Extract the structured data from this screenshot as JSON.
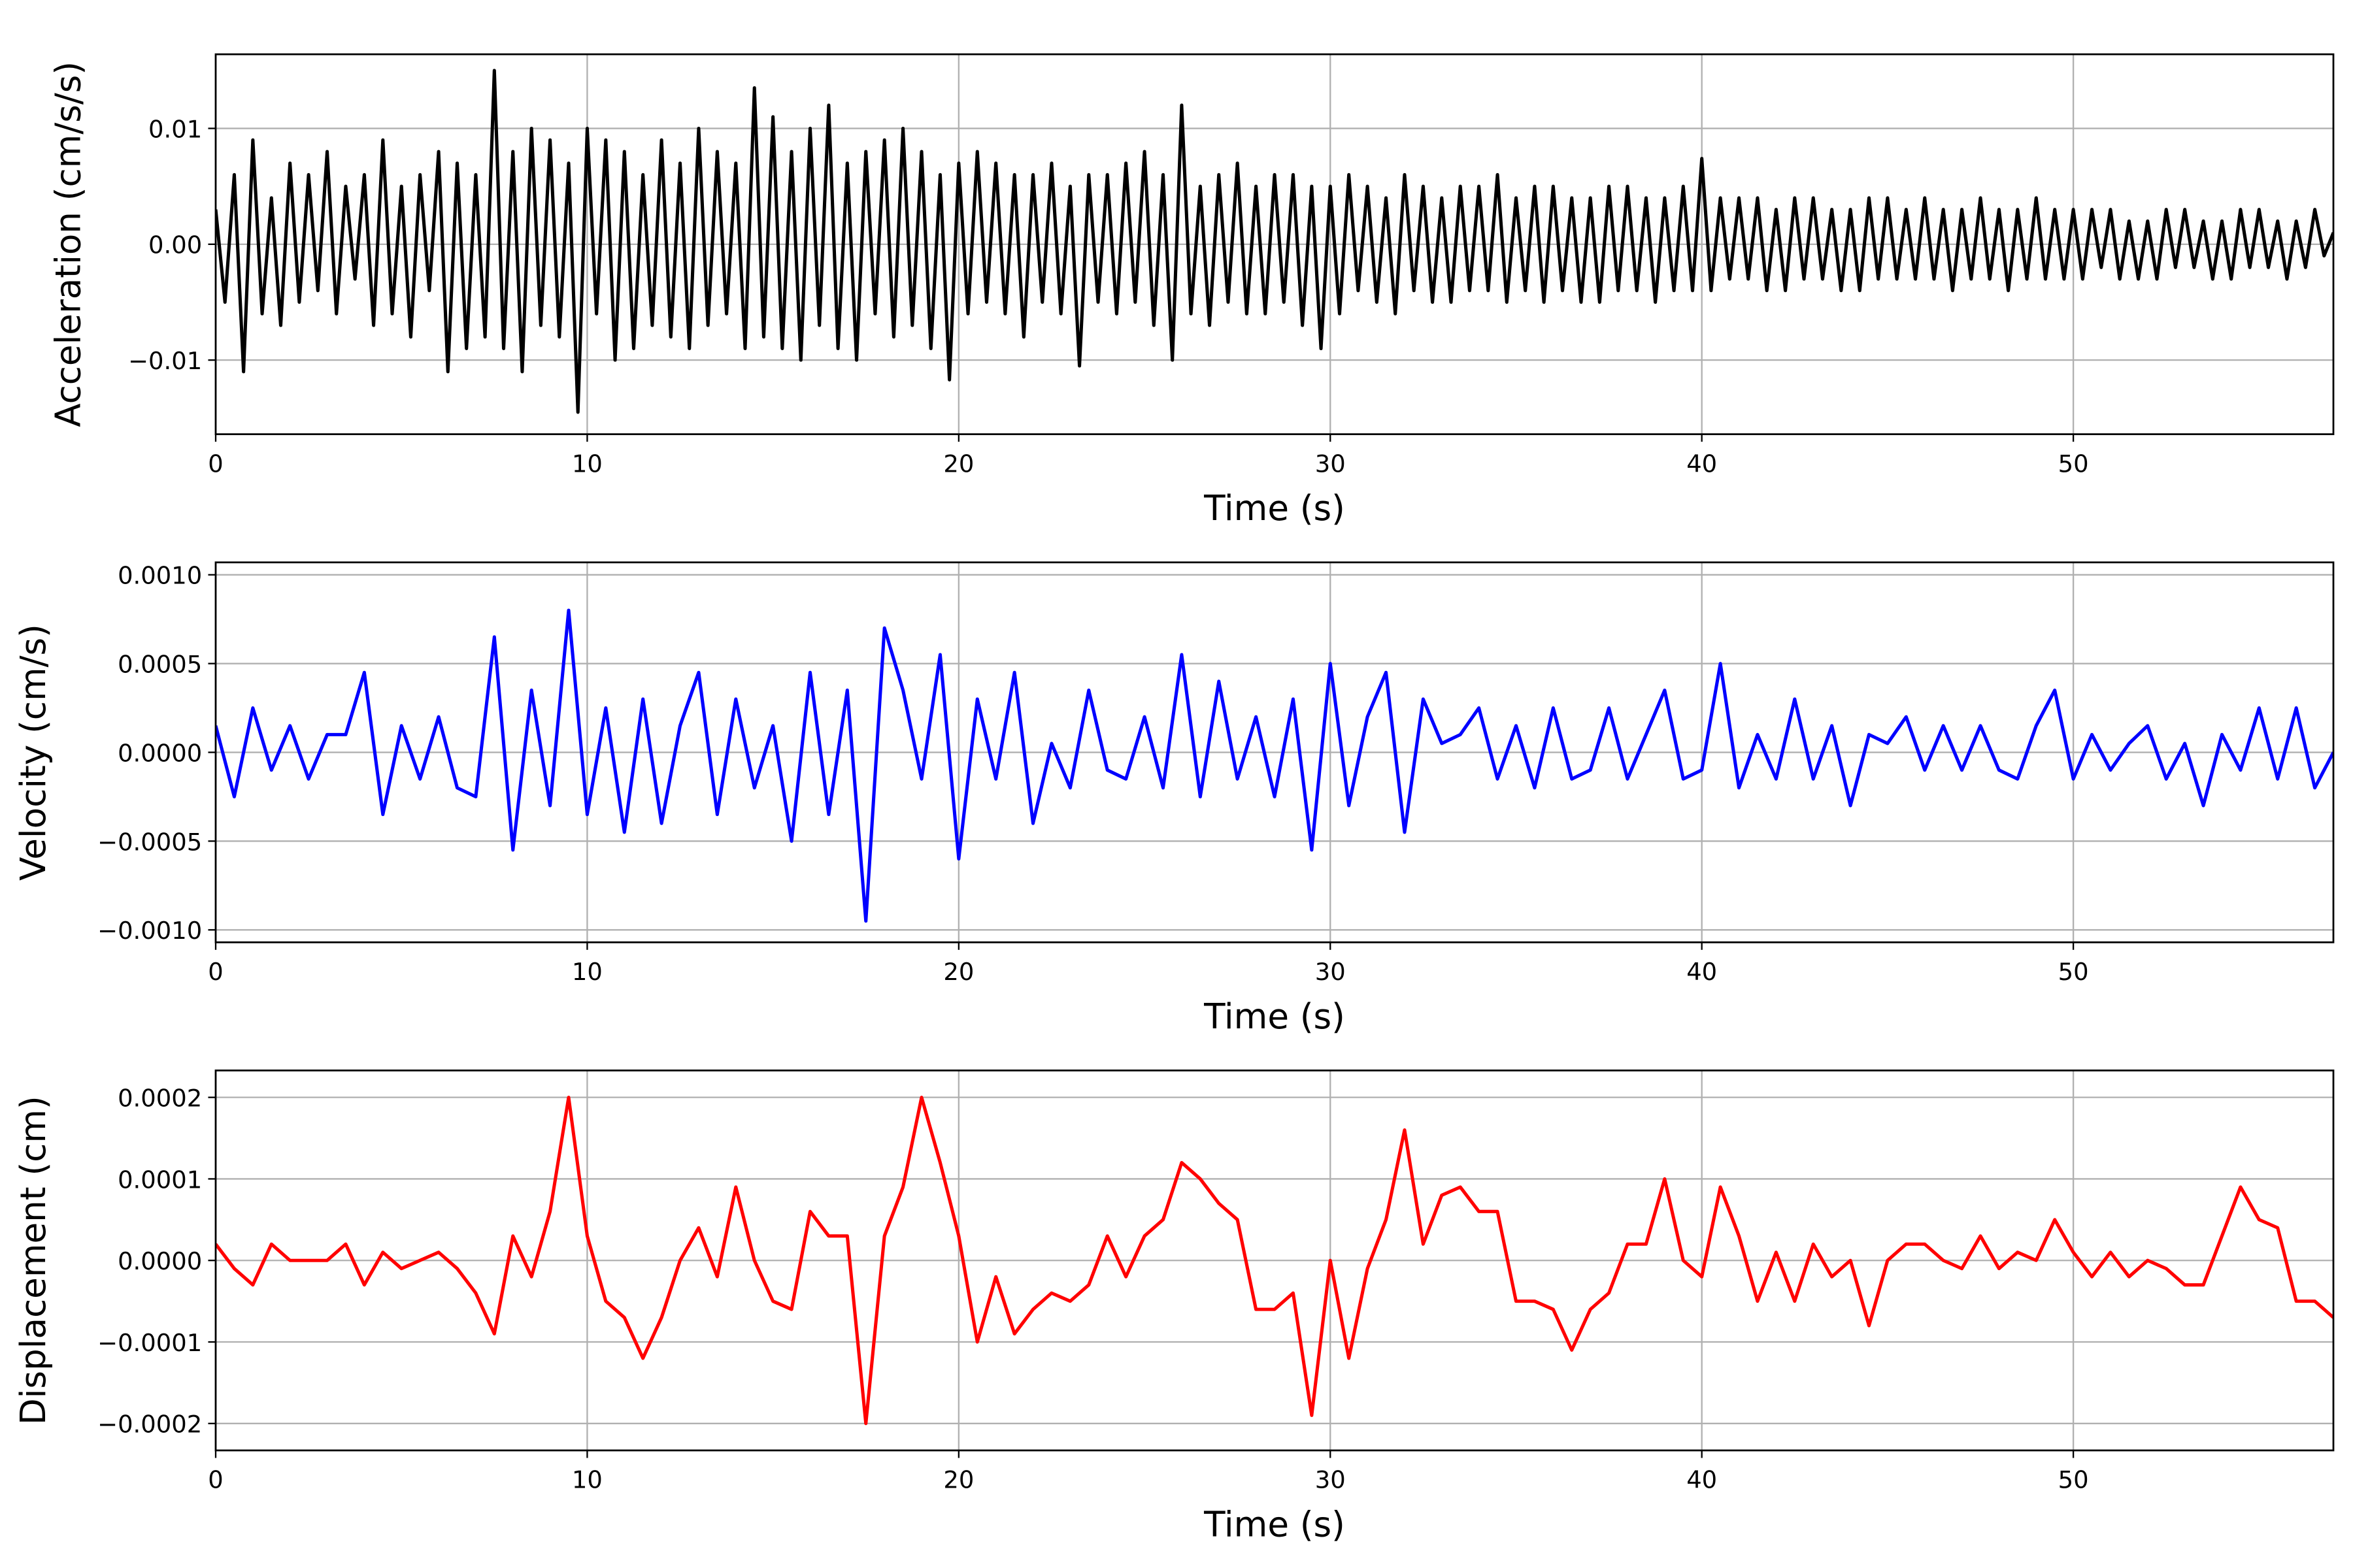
{
  "chart_data": [
    {
      "type": "line",
      "xlabel": "Time (s)",
      "ylabel": "Acceleration (cm/s/s)",
      "color": "#000000",
      "grid": true,
      "xlim": [
        0,
        57
      ],
      "ylim": [
        -0.0164,
        0.0164
      ],
      "xticks": [
        0,
        10,
        20,
        30,
        40,
        50
      ],
      "yticks": [
        {
          "value": -0.01,
          "label": "−0.01"
        },
        {
          "value": 0,
          "label": "0.00"
        },
        0.01
      ],
      "x": [
        0,
        0.25,
        0.5,
        0.75,
        1,
        1.25,
        1.5,
        1.75,
        2,
        2.25,
        2.5,
        2.75,
        3,
        3.25,
        3.5,
        3.75,
        4,
        4.25,
        4.5,
        4.75,
        5,
        5.25,
        5.5,
        5.75,
        6,
        6.25,
        6.5,
        6.75,
        7,
        7.25,
        7.5,
        7.75,
        8,
        8.25,
        8.5,
        8.75,
        9,
        9.25,
        9.5,
        9.75,
        10,
        10.25,
        10.5,
        10.75,
        11,
        11.25,
        11.5,
        11.75,
        12,
        12.25,
        12.5,
        12.75,
        13,
        13.25,
        13.5,
        13.75,
        14,
        14.25,
        14.5,
        14.75,
        15,
        15.25,
        15.5,
        15.75,
        16,
        16.25,
        16.5,
        16.75,
        17,
        17.25,
        17.5,
        17.75,
        18,
        18.25,
        18.5,
        18.75,
        19,
        19.25,
        19.5,
        19.75,
        20,
        20.25,
        20.5,
        20.75,
        21,
        21.25,
        21.5,
        21.75,
        22,
        22.25,
        22.5,
        22.75,
        23,
        23.25,
        23.5,
        23.75,
        24,
        24.25,
        24.5,
        24.75,
        25,
        25.25,
        25.5,
        25.75,
        26,
        26.25,
        26.5,
        26.75,
        27,
        27.25,
        27.5,
        27.75,
        28,
        28.25,
        28.5,
        28.75,
        29,
        29.25,
        29.5,
        29.75,
        30,
        30.25,
        30.5,
        30.75,
        31,
        31.25,
        31.5,
        31.75,
        32,
        32.25,
        32.5,
        32.75,
        33,
        33.25,
        33.5,
        33.75,
        34,
        34.25,
        34.5,
        34.75,
        35,
        35.25,
        35.5,
        35.75,
        36,
        36.25,
        36.5,
        36.75,
        37,
        37.25,
        37.5,
        37.75,
        38,
        38.25,
        38.5,
        38.75,
        39,
        39.25,
        39.5,
        39.75,
        40,
        40.25,
        40.5,
        40.75,
        41,
        41.25,
        41.5,
        41.75,
        42,
        42.25,
        42.5,
        42.75,
        43,
        43.25,
        43.5,
        43.75,
        44,
        44.25,
        44.5,
        44.75,
        45,
        45.25,
        45.5,
        45.75,
        46,
        46.25,
        46.5,
        46.75,
        47,
        47.25,
        47.5,
        47.75,
        48,
        48.25,
        48.5,
        48.75,
        49,
        49.25,
        49.5,
        49.75,
        50,
        50.25,
        50.5,
        50.75,
        51,
        51.25,
        51.5,
        51.75,
        52,
        52.25,
        52.5,
        52.75,
        53,
        53.25,
        53.5,
        53.75,
        54,
        54.25,
        54.5,
        54.75,
        55,
        55.25,
        55.5,
        55.75,
        56,
        56.25,
        56.5,
        56.75,
        57
      ],
      "values": [
        0.003,
        -0.005,
        0.006,
        -0.011,
        0.009,
        -0.006,
        0.004,
        -0.007,
        0.007,
        -0.005,
        0.006,
        -0.004,
        0.008,
        -0.006,
        0.005,
        -0.003,
        0.006,
        -0.007,
        0.009,
        -0.006,
        0.005,
        -0.008,
        0.006,
        -0.004,
        0.008,
        -0.011,
        0.007,
        -0.009,
        0.006,
        -0.008,
        0.015,
        -0.009,
        0.008,
        -0.011,
        0.01,
        -0.007,
        0.009,
        -0.008,
        0.007,
        -0.0145,
        0.01,
        -0.006,
        0.009,
        -0.01,
        0.008,
        -0.009,
        0.006,
        -0.007,
        0.009,
        -0.008,
        0.007,
        -0.009,
        0.01,
        -0.007,
        0.008,
        -0.006,
        0.007,
        -0.009,
        0.0135,
        -0.008,
        0.011,
        -0.009,
        0.008,
        -0.01,
        0.01,
        -0.007,
        0.012,
        -0.009,
        0.007,
        -0.01,
        0.008,
        -0.006,
        0.009,
        -0.008,
        0.01,
        -0.007,
        0.008,
        -0.009,
        0.006,
        -0.0117,
        0.007,
        -0.006,
        0.008,
        -0.005,
        0.007,
        -0.006,
        0.006,
        -0.008,
        0.006,
        -0.005,
        0.007,
        -0.006,
        0.005,
        -0.0105,
        0.006,
        -0.005,
        0.006,
        -0.006,
        0.007,
        -0.005,
        0.008,
        -0.007,
        0.006,
        -0.01,
        0.012,
        -0.006,
        0.005,
        -0.007,
        0.006,
        -0.005,
        0.007,
        -0.006,
        0.005,
        -0.006,
        0.006,
        -0.005,
        0.006,
        -0.007,
        0.005,
        -0.009,
        0.005,
        -0.006,
        0.006,
        -0.004,
        0.005,
        -0.005,
        0.004,
        -0.006,
        0.006,
        -0.004,
        0.005,
        -0.005,
        0.004,
        -0.005,
        0.005,
        -0.004,
        0.005,
        -0.004,
        0.006,
        -0.005,
        0.004,
        -0.004,
        0.005,
        -0.005,
        0.005,
        -0.004,
        0.004,
        -0.005,
        0.004,
        -0.005,
        0.005,
        -0.004,
        0.005,
        -0.004,
        0.004,
        -0.005,
        0.004,
        -0.004,
        0.005,
        -0.004,
        0.0074,
        -0.004,
        0.004,
        -0.003,
        0.004,
        -0.003,
        0.004,
        -0.004,
        0.003,
        -0.004,
        0.004,
        -0.003,
        0.004,
        -0.003,
        0.003,
        -0.004,
        0.003,
        -0.004,
        0.004,
        -0.003,
        0.004,
        -0.003,
        0.003,
        -0.003,
        0.004,
        -0.003,
        0.003,
        -0.004,
        0.003,
        -0.003,
        0.004,
        -0.003,
        0.003,
        -0.004,
        0.003,
        -0.003,
        0.004,
        -0.003,
        0.003,
        -0.003,
        0.003,
        -0.003,
        0.003,
        -0.002,
        0.003,
        -0.003,
        0.002,
        -0.003,
        0.002,
        -0.003,
        0.003,
        -0.002,
        0.003,
        -0.002,
        0.002,
        -0.003,
        0.002,
        -0.003,
        0.003,
        -0.002,
        0.003,
        -0.002,
        0.002,
        -0.003,
        0.002,
        -0.002,
        0.003,
        -0.001,
        0.001
      ]
    },
    {
      "type": "line",
      "xlabel": "Time (s)",
      "ylabel": "Velocity (cm/s)",
      "color": "#0000ff",
      "grid": true,
      "xlim": [
        0,
        57
      ],
      "ylim": [
        -0.00107,
        0.00107
      ],
      "xticks": [
        0,
        10,
        20,
        30,
        40,
        50
      ],
      "yticks": [
        {
          "value": -0.001,
          "label": "−0.0010"
        },
        {
          "value": -0.0005,
          "label": "−0.0005"
        },
        {
          "value": 0,
          "label": "0.0000"
        },
        0.0005,
        {
          "value": 0.001,
          "label": "0.0010"
        }
      ],
      "x": [
        0,
        0.5,
        1,
        1.5,
        2,
        2.5,
        3,
        3.5,
        4,
        4.5,
        5,
        5.5,
        6,
        6.5,
        7,
        7.5,
        8,
        8.5,
        9,
        9.5,
        10,
        10.5,
        11,
        11.5,
        12,
        12.5,
        13,
        13.5,
        14,
        14.5,
        15,
        15.5,
        16,
        16.5,
        17,
        17.5,
        18,
        18.5,
        19,
        19.5,
        20,
        20.5,
        21,
        21.5,
        22,
        22.5,
        23,
        23.5,
        24,
        24.5,
        25,
        25.5,
        26,
        26.5,
        27,
        27.5,
        28,
        28.5,
        29,
        29.5,
        30,
        30.5,
        31,
        31.5,
        32,
        32.5,
        33,
        33.5,
        34,
        34.5,
        35,
        35.5,
        36,
        36.5,
        37,
        37.5,
        38,
        38.5,
        39,
        39.5,
        40,
        40.5,
        41,
        41.5,
        42,
        42.5,
        43,
        43.5,
        44,
        44.5,
        45,
        45.5,
        46,
        46.5,
        47,
        47.5,
        48,
        48.5,
        49,
        49.5,
        50,
        50.5,
        51,
        51.5,
        52,
        52.5,
        53,
        53.5,
        54,
        54.5,
        55,
        55.5,
        56,
        56.5,
        57
      ],
      "values": [
        0.00015,
        -0.00025,
        0.00025,
        -0.0001,
        0.00015,
        -0.00015,
        0.0001,
        0.0001,
        0.00045,
        -0.00035,
        0.00015,
        -0.00015,
        0.0002,
        -0.0002,
        -0.00025,
        0.00065,
        -0.00055,
        0.00035,
        -0.0003,
        0.0008,
        -0.00035,
        0.00025,
        -0.00045,
        0.0003,
        -0.0004,
        0.00015,
        0.00045,
        -0.00035,
        0.0003,
        -0.0002,
        0.00015,
        -0.0005,
        0.00045,
        -0.00035,
        0.00035,
        -0.00095,
        0.0007,
        0.00035,
        -0.00015,
        0.00055,
        -0.0006,
        0.0003,
        -0.00015,
        0.00045,
        -0.0004,
        5e-05,
        -0.0002,
        0.00035,
        -0.0001,
        -0.00015,
        0.0002,
        -0.0002,
        0.00055,
        -0.00025,
        0.0004,
        -0.00015,
        0.0002,
        -0.00025,
        0.0003,
        -0.00055,
        0.0005,
        -0.0003,
        0.0002,
        0.00045,
        -0.00045,
        0.0003,
        5e-05,
        0.0001,
        0.00025,
        -0.00015,
        0.00015,
        -0.0002,
        0.00025,
        -0.00015,
        -0.0001,
        0.00025,
        -0.00015,
        0.0001,
        0.00035,
        -0.00015,
        -0.0001,
        0.0005,
        -0.0002,
        0.0001,
        -0.00015,
        0.0003,
        -0.00015,
        0.00015,
        -0.0003,
        0.0001,
        5e-05,
        0.0002,
        -0.0001,
        0.00015,
        -0.0001,
        0.00015,
        -0.0001,
        -0.00015,
        0.00015,
        0.00035,
        -0.00015,
        0.0001,
        -0.0001,
        5e-05,
        0.00015,
        -0.00015,
        5e-05,
        -0.0003,
        0.0001,
        -0.0001,
        0.00025,
        -0.00015,
        0.00025,
        -0.0002,
        0
      ]
    },
    {
      "type": "line",
      "xlabel": "Time (s)",
      "ylabel": "Displacement (cm)",
      "color": "#ff0000",
      "grid": true,
      "xlim": [
        0,
        57
      ],
      "ylim": [
        -0.000233,
        0.000233
      ],
      "xticks": [
        0,
        10,
        20,
        30,
        40,
        50
      ],
      "yticks": [
        {
          "value": -0.0002,
          "label": "−0.0002"
        },
        {
          "value": -0.0001,
          "label": "−0.0001"
        },
        {
          "value": 0,
          "label": "0.0000"
        },
        0.0001,
        0.0002
      ],
      "x": [
        0,
        0.5,
        1,
        1.5,
        2,
        2.5,
        3,
        3.5,
        4,
        4.5,
        5,
        5.5,
        6,
        6.5,
        7,
        7.5,
        8,
        8.5,
        9,
        9.5,
        10,
        10.5,
        11,
        11.5,
        12,
        12.5,
        13,
        13.5,
        14,
        14.5,
        15,
        15.5,
        16,
        16.5,
        17,
        17.5,
        18,
        18.5,
        19,
        19.5,
        20,
        20.5,
        21,
        21.5,
        22,
        22.5,
        23,
        23.5,
        24,
        24.5,
        25,
        25.5,
        26,
        26.5,
        27,
        27.5,
        28,
        28.5,
        29,
        29.5,
        30,
        30.5,
        31,
        31.5,
        32,
        32.5,
        33,
        33.5,
        34,
        34.5,
        35,
        35.5,
        36,
        36.5,
        37,
        37.5,
        38,
        38.5,
        39,
        39.5,
        40,
        40.5,
        41,
        41.5,
        42,
        42.5,
        43,
        43.5,
        44,
        44.5,
        45,
        45.5,
        46,
        46.5,
        47,
        47.5,
        48,
        48.5,
        49,
        49.5,
        50,
        50.5,
        51,
        51.5,
        52,
        52.5,
        53,
        53.5,
        54,
        54.5,
        55,
        55.5,
        56,
        56.5,
        57
      ],
      "values": [
        2e-05,
        -1e-05,
        -3e-05,
        2e-05,
        0,
        0,
        0,
        2e-05,
        -3e-05,
        1e-05,
        -1e-05,
        0,
        1e-05,
        -1e-05,
        -4e-05,
        -9e-05,
        3e-05,
        -2e-05,
        6e-05,
        0.0002,
        3e-05,
        -5e-05,
        -7e-05,
        -0.00012,
        -7e-05,
        0,
        4e-05,
        -2e-05,
        9e-05,
        0,
        -5e-05,
        -6e-05,
        6e-05,
        3e-05,
        3e-05,
        -0.0002,
        3e-05,
        9e-05,
        0.0002,
        0.00012,
        3e-05,
        -0.0001,
        -2e-05,
        -9e-05,
        -6e-05,
        -4e-05,
        -5e-05,
        -3e-05,
        3e-05,
        -2e-05,
        3e-05,
        5e-05,
        0.00012,
        0.0001,
        7e-05,
        5e-05,
        -6e-05,
        -6e-05,
        -4e-05,
        -0.00019,
        0,
        -0.00012,
        -1e-05,
        5e-05,
        0.00016,
        2e-05,
        8e-05,
        9e-05,
        6e-05,
        6e-05,
        -5e-05,
        -5e-05,
        -6e-05,
        -0.00011,
        -6e-05,
        -4e-05,
        2e-05,
        2e-05,
        0.0001,
        0,
        -2e-05,
        9e-05,
        3e-05,
        -5e-05,
        1e-05,
        -5e-05,
        2e-05,
        -2e-05,
        0,
        -8e-05,
        0,
        2e-05,
        2e-05,
        0,
        -1e-05,
        3e-05,
        -1e-05,
        1e-05,
        0,
        5e-05,
        1e-05,
        -2e-05,
        1e-05,
        -2e-05,
        0,
        -1e-05,
        -3e-05,
        -3e-05,
        3e-05,
        9e-05,
        5e-05,
        4e-05,
        -5e-05,
        -5e-05,
        -7e-05
      ]
    }
  ]
}
